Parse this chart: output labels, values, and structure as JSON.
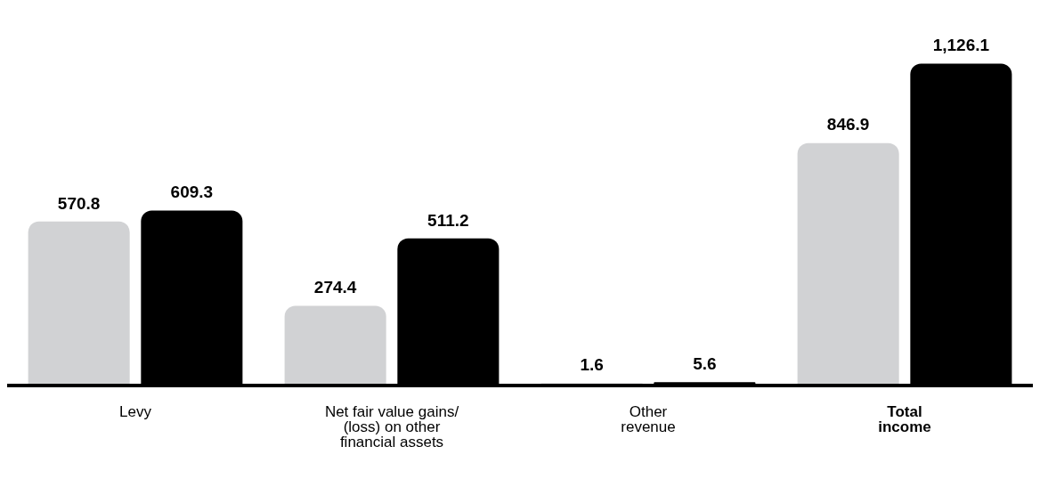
{
  "chart_data": {
    "type": "bar",
    "categories": [
      "Levy",
      "Net fair value gains/ (loss) on other financial assets",
      "Other revenue",
      "Total income"
    ],
    "series": [
      {
        "color": "#d1d2d4",
        "values": [
          570.8,
          274.4,
          1.6,
          846.9
        ],
        "value_labels": [
          "570.8",
          "274.4",
          "1.6",
          "846.9"
        ]
      },
      {
        "color": "#000000",
        "values": [
          609.3,
          511.2,
          5.6,
          1126.1
        ],
        "value_labels": [
          "609.3",
          "511.2",
          "5.6",
          "1,126.1"
        ]
      }
    ],
    "grid": false,
    "legend": false
  }
}
